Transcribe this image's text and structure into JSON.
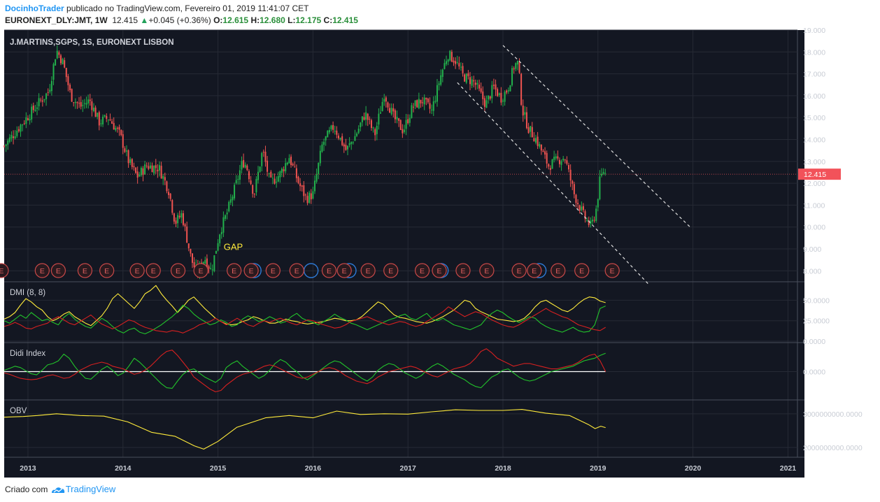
{
  "header": {
    "author": "DocinhoTrader",
    "published_text": "publicado no TradingView.com, Fevereiro 01, 2019 11:41:07 CET",
    "symbol": "EURONEXT_DLY:JMT, 1W",
    "last": "12.415",
    "change": "+0.045 (+0.36%)",
    "o_label": "O:",
    "o": "12.615",
    "h_label": "H:",
    "h": "12.680",
    "l_label": "L:",
    "l": "12.175",
    "c_label": "C:",
    "c": "12.415"
  },
  "footer": {
    "created_with": "Criado com",
    "brand": "TradingView"
  },
  "colors": {
    "background": "#131722",
    "grid": "#262a35",
    "up": "#26a69a",
    "up_line": "#22b14c",
    "down": "#ef5350",
    "price_tag": "#f2525a",
    "yellow": "#ffeb3b",
    "green": "#22c32b",
    "red": "#d62020",
    "axis_text": "#c8ccd4",
    "divider": "#4a4f5c"
  },
  "chart_data": [
    {
      "type": "candlestick",
      "title": "J.MARTINS,SGPS, 1S, EURONEXT LISBON",
      "ylim": [
        7.5,
        19.0
      ],
      "yticks": [
        "19.000",
        "18.000",
        "17.000",
        "16.000",
        "15.000",
        "14.000",
        "13.000",
        "12.000",
        "11.000",
        "10.000",
        "9.000",
        "8.000"
      ],
      "last_price": "12.415",
      "annotation": "GAP",
      "earnings_marker": "E",
      "earnings_dates": [
        2012.72,
        2013.15,
        2013.32,
        2013.6,
        2013.83,
        2014.15,
        2014.32,
        2014.58,
        2014.82,
        2015.17,
        2015.35,
        2015.58,
        2015.83,
        2016.17,
        2016.33,
        2016.58,
        2016.82,
        2017.15,
        2017.33,
        2017.58,
        2017.83,
        2018.17,
        2018.33,
        2018.58,
        2018.83,
        2019.15
      ],
      "dividend_dates": [
        2015.38,
        2015.98,
        2016.38,
        2017.35,
        2018.38
      ],
      "x_start": 2012.75,
      "x_end": 2021.1,
      "key_points": [
        [
          2012.75,
          13.7
        ],
        [
          2012.95,
          14.8
        ],
        [
          2013.1,
          15.6
        ],
        [
          2013.22,
          16.2
        ],
        [
          2013.3,
          18.1
        ],
        [
          2013.37,
          17.5
        ],
        [
          2013.45,
          16.0
        ],
        [
          2013.55,
          15.5
        ],
        [
          2013.65,
          15.8
        ],
        [
          2013.75,
          14.8
        ],
        [
          2013.85,
          15.0
        ],
        [
          2013.97,
          14.2
        ],
        [
          2014.06,
          13.0
        ],
        [
          2014.15,
          12.3
        ],
        [
          2014.25,
          12.8
        ],
        [
          2014.38,
          12.7
        ],
        [
          2014.48,
          11.7
        ],
        [
          2014.55,
          10.2
        ],
        [
          2014.62,
          10.6
        ],
        [
          2014.72,
          8.5
        ],
        [
          2014.78,
          7.9
        ],
        [
          2014.86,
          8.6
        ],
        [
          2014.93,
          8.0
        ],
        [
          2015.02,
          9.8
        ],
        [
          2015.1,
          10.7
        ],
        [
          2015.18,
          11.8
        ],
        [
          2015.26,
          13.0
        ],
        [
          2015.3,
          12.8
        ],
        [
          2015.38,
          11.5
        ],
        [
          2015.47,
          13.5
        ],
        [
          2015.55,
          12.0
        ],
        [
          2015.65,
          12.4
        ],
        [
          2015.75,
          13.2
        ],
        [
          2015.85,
          12.0
        ],
        [
          2015.93,
          11.3
        ],
        [
          2016.0,
          11.5
        ],
        [
          2016.1,
          13.8
        ],
        [
          2016.22,
          14.6
        ],
        [
          2016.35,
          13.5
        ],
        [
          2016.45,
          14.2
        ],
        [
          2016.55,
          15.2
        ],
        [
          2016.65,
          14.2
        ],
        [
          2016.75,
          16.1
        ],
        [
          2016.85,
          15.0
        ],
        [
          2016.95,
          14.4
        ],
        [
          2017.05,
          15.5
        ],
        [
          2017.15,
          15.8
        ],
        [
          2017.25,
          15.3
        ],
        [
          2017.35,
          17.0
        ],
        [
          2017.42,
          17.9
        ],
        [
          2017.5,
          17.6
        ],
        [
          2017.58,
          16.9
        ],
        [
          2017.7,
          16.6
        ],
        [
          2017.82,
          15.6
        ],
        [
          2017.9,
          16.4
        ],
        [
          2017.98,
          15.9
        ],
        [
          2018.05,
          16.3
        ],
        [
          2018.12,
          17.4
        ],
        [
          2018.16,
          17.5
        ],
        [
          2018.2,
          15.4
        ],
        [
          2018.27,
          14.5
        ],
        [
          2018.35,
          14.0
        ],
        [
          2018.48,
          12.8
        ],
        [
          2018.55,
          13.0
        ],
        [
          2018.65,
          13.2
        ],
        [
          2018.75,
          11.5
        ],
        [
          2018.85,
          10.5
        ],
        [
          2018.93,
          10.0
        ],
        [
          2018.98,
          10.8
        ],
        [
          2019.02,
          12.1
        ],
        [
          2019.06,
          12.6
        ],
        [
          2019.08,
          12.415
        ]
      ],
      "channel_upper": [
        [
          2018.0,
          18.3
        ],
        [
          2019.97,
          10.0
        ]
      ],
      "channel_lower": [
        [
          2017.52,
          16.6
        ],
        [
          2019.53,
          7.4
        ]
      ]
    },
    {
      "type": "line",
      "title": "DMI (8, 8)",
      "ylim": [
        0,
        70
      ],
      "yticks": [
        "50.0000",
        "25.0000",
        "0.0000"
      ],
      "x_start": 2012.75,
      "x_end": 2019.08,
      "series": [
        {
          "color": "yellow",
          "values": [
            27,
            30,
            35,
            44,
            52,
            48,
            42,
            38,
            30,
            25,
            28,
            33,
            36,
            30,
            26,
            22,
            19,
            25,
            31,
            40,
            52,
            58,
            52,
            46,
            40,
            48,
            58,
            62,
            68,
            58,
            50,
            43,
            35,
            42,
            50,
            54,
            47,
            40,
            34,
            28,
            24,
            21,
            20,
            21,
            24,
            26,
            30,
            28,
            25,
            22,
            22,
            24,
            27,
            25,
            24,
            22,
            21,
            22,
            23,
            24,
            26,
            28,
            27,
            25,
            25,
            26,
            30,
            36,
            42,
            48,
            45,
            38,
            32,
            29,
            28,
            26,
            24,
            23,
            22,
            24,
            27,
            30,
            34,
            38,
            44,
            50,
            48,
            40,
            36,
            33,
            30,
            27,
            26,
            25,
            24,
            25,
            28,
            34,
            42,
            48,
            50,
            46,
            42,
            38,
            36,
            40,
            46,
            51,
            54,
            53,
            49,
            47
          ]
        },
        {
          "color": "green",
          "values": [
            25,
            22,
            27,
            32,
            28,
            35,
            30,
            25,
            27,
            23,
            20,
            29,
            34,
            27,
            22,
            18,
            16,
            22,
            28,
            24,
            18,
            13,
            10,
            14,
            16,
            11,
            9,
            12,
            16,
            20,
            25,
            30,
            36,
            44,
            40,
            33,
            28,
            24,
            20,
            22,
            26,
            23,
            18,
            20,
            27,
            31,
            28,
            24,
            26,
            30,
            27,
            22,
            24,
            30,
            34,
            28,
            25,
            23,
            20,
            24,
            28,
            33,
            29,
            26,
            22,
            20,
            17,
            14,
            17,
            20,
            23,
            26,
            28,
            31,
            33,
            28,
            26,
            30,
            34,
            27,
            25,
            28,
            24,
            20,
            18,
            16,
            14,
            17,
            20,
            28,
            34,
            38,
            35,
            30,
            26,
            23,
            26,
            30,
            28,
            22,
            18,
            15,
            13,
            11,
            14,
            17,
            13,
            11,
            12,
            20,
            40,
            43
          ]
        },
        {
          "color": "red",
          "values": [
            18,
            20,
            23,
            20,
            16,
            15,
            18,
            20,
            22,
            27,
            30,
            26,
            22,
            20,
            24,
            28,
            32,
            26,
            21,
            18,
            15,
            18,
            22,
            26,
            24,
            20,
            17,
            15,
            13,
            12,
            11,
            13,
            12,
            10,
            13,
            16,
            20,
            22,
            24,
            28,
            24,
            20,
            24,
            28,
            24,
            20,
            18,
            22,
            25,
            23,
            26,
            28,
            25,
            22,
            20,
            23,
            26,
            25,
            22,
            20,
            18,
            16,
            17,
            20,
            24,
            26,
            28,
            30,
            27,
            24,
            22,
            20,
            22,
            24,
            23,
            20,
            18,
            20,
            24,
            28,
            32,
            36,
            42,
            38,
            34,
            30,
            33,
            36,
            34,
            30,
            26,
            23,
            20,
            18,
            17,
            20,
            24,
            28,
            32,
            36,
            40,
            36,
            33,
            30,
            28,
            24,
            20,
            18,
            16,
            14,
            13,
            17
          ]
        }
      ]
    },
    {
      "type": "line",
      "title": "Didi Index",
      "ylim": [
        -10,
        10
      ],
      "yticks": [
        "0.0000"
      ],
      "x_start": 2012.75,
      "x_end": 2019.08,
      "series": [
        {
          "color": "green",
          "values": [
            0.5,
            1.2,
            2.0,
            1.5,
            0.3,
            -0.8,
            -1.2,
            0.5,
            2.5,
            3.0,
            4.0,
            6.5,
            5.0,
            2.0,
            -0.5,
            -2.5,
            -2.8,
            -1.0,
            0.8,
            2.0,
            0.5,
            -1.5,
            -0.5,
            2.0,
            5.0,
            3.5,
            1.5,
            -0.5,
            -2.5,
            -4.5,
            -6.0,
            -6.2,
            -3.5,
            -1.0,
            0.5,
            1.0,
            -0.5,
            -2.0,
            -3.0,
            -4.0,
            -2.5,
            1.5,
            3.0,
            4.0,
            2.0,
            0.5,
            -1.0,
            -2.5,
            -1.5,
            0.5,
            3.0,
            4.5,
            3.5,
            1.5,
            0.0,
            -2.0,
            -3.0,
            -1.5,
            0.0,
            1.5,
            3.0,
            4.0,
            3.5,
            2.0,
            0.5,
            -1.0,
            -2.5,
            -3.5,
            -2.0,
            0.5,
            2.0,
            3.0,
            2.5,
            1.0,
            -0.5,
            -1.5,
            -2.5,
            -1.5,
            0.5,
            2.0,
            3.0,
            2.0,
            0.5,
            -1.0,
            -2.0,
            -3.0,
            -4.5,
            -5.5,
            -6.0,
            -4.0,
            -2.0,
            -1.0,
            0.5,
            1.0,
            -0.5,
            -2.0,
            -3.0,
            -3.5,
            -3.0,
            -2.0,
            -1.0,
            0.0,
            0.5,
            1.0,
            1.5,
            2.0,
            3.0,
            4.0,
            4.5,
            5.0,
            6.0,
            6.8
          ]
        },
        {
          "color": "red",
          "values": [
            -0.5,
            -1.0,
            -1.8,
            -2.5,
            -2.8,
            -3.0,
            -2.8,
            -2.2,
            -1.5,
            -1.2,
            -1.8,
            -2.5,
            -2.2,
            -1.0,
            0.5,
            1.5,
            2.5,
            3.0,
            3.5,
            3.0,
            2.0,
            1.5,
            1.0,
            0.0,
            -1.0,
            -0.5,
            0.5,
            2.0,
            4.0,
            6.0,
            7.5,
            8.0,
            6.0,
            3.5,
            1.0,
            -2.0,
            -3.5,
            -5.0,
            -6.5,
            -7.5,
            -7.0,
            -5.0,
            -3.5,
            -2.0,
            -1.0,
            -0.5,
            0.0,
            1.0,
            2.0,
            2.5,
            2.0,
            1.0,
            0.0,
            -1.0,
            -2.0,
            -2.5,
            -2.0,
            -1.0,
            0.0,
            1.0,
            1.5,
            1.0,
            0.0,
            -1.5,
            -2.5,
            -3.5,
            -4.0,
            -4.5,
            -3.5,
            -2.0,
            -1.0,
            0.0,
            0.5,
            1.0,
            1.5,
            2.0,
            1.5,
            0.5,
            -0.5,
            -1.5,
            -2.0,
            -1.0,
            0.0,
            1.0,
            1.5,
            2.0,
            3.0,
            5.0,
            7.5,
            8.5,
            7.0,
            5.0,
            4.0,
            3.0,
            2.0,
            2.5,
            3.0,
            3.0,
            2.5,
            2.0,
            1.5,
            1.0,
            1.0,
            1.5,
            2.0,
            2.5,
            3.5,
            5.0,
            6.0,
            6.5,
            4.0,
            0.0
          ]
        }
      ]
    },
    {
      "type": "line",
      "title": "OBV",
      "ylim": [
        1750000000,
        3350000000
      ],
      "yticks": [
        "3000000000.0000",
        "2000000000.0000"
      ],
      "x_start": 2012.75,
      "x_end": 2019.08,
      "series": [
        {
          "color": "yellow",
          "points": [
            [
              2012.75,
              2900000000
            ],
            [
              2012.95,
              2920000000
            ],
            [
              2013.1,
              2950000000
            ],
            [
              2013.3,
              3000000000
            ],
            [
              2013.55,
              2950000000
            ],
            [
              2013.8,
              2930000000
            ],
            [
              2014.05,
              2760000000
            ],
            [
              2014.3,
              2450000000
            ],
            [
              2014.55,
              2330000000
            ],
            [
              2014.75,
              2050000000
            ],
            [
              2014.85,
              1950000000
            ],
            [
              2015.0,
              2180000000
            ],
            [
              2015.2,
              2600000000
            ],
            [
              2015.5,
              2880000000
            ],
            [
              2015.75,
              2950000000
            ],
            [
              2016.0,
              2880000000
            ],
            [
              2016.25,
              3080000000
            ],
            [
              2016.5,
              2980000000
            ],
            [
              2016.75,
              3000000000
            ],
            [
              2017.0,
              2990000000
            ],
            [
              2017.25,
              3060000000
            ],
            [
              2017.5,
              3120000000
            ],
            [
              2017.75,
              3100000000
            ],
            [
              2018.0,
              3100000000
            ],
            [
              2018.2,
              3130000000
            ],
            [
              2018.45,
              3020000000
            ],
            [
              2018.7,
              2950000000
            ],
            [
              2018.9,
              2680000000
            ],
            [
              2018.97,
              2560000000
            ],
            [
              2019.03,
              2630000000
            ],
            [
              2019.08,
              2590000000
            ]
          ]
        }
      ]
    }
  ],
  "x_axis": {
    "ticks": [
      "2013",
      "2014",
      "2015",
      "2016",
      "2017",
      "2018",
      "2019",
      "2020",
      "2021"
    ],
    "values": [
      2013,
      2014,
      2015,
      2016,
      2017,
      2018,
      2019,
      2020,
      2021
    ]
  }
}
